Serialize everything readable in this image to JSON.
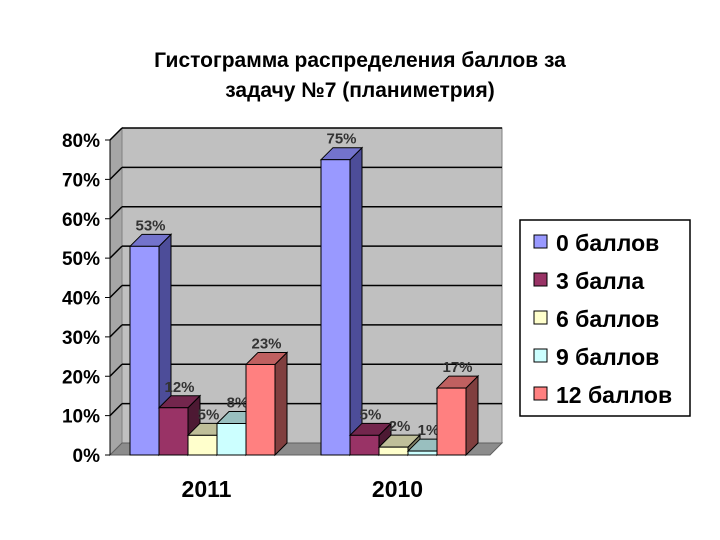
{
  "chart_data": {
    "type": "bar",
    "title_lines": [
      "Гистограмма распределения баллов за",
      "задачу №7 (планиметрия)"
    ],
    "categories": [
      "2011",
      "2010"
    ],
    "series": [
      {
        "name": "0 баллов",
        "values": [
          53,
          75
        ],
        "labels": [
          "53%",
          "75%"
        ],
        "color": "#9999ff",
        "side": "#4d4d99",
        "top": "#7373cc"
      },
      {
        "name": "3 балла",
        "values": [
          12,
          5
        ],
        "labels": [
          "12%",
          "5%"
        ],
        "color": "#993366",
        "side": "#4d1933",
        "top": "#73264d"
      },
      {
        "name": "6 баллов",
        "values": [
          5,
          2
        ],
        "labels": [
          "5%",
          "2%"
        ],
        "color": "#ffffcc",
        "side": "#808066",
        "top": "#bfbf99"
      },
      {
        "name": "9 баллов",
        "values": [
          8,
          1
        ],
        "labels": [
          "8%",
          "1%"
        ],
        "color": "#ccffff",
        "side": "#668080",
        "top": "#99bfbf"
      },
      {
        "name": "12 баллов",
        "values": [
          23,
          17
        ],
        "labels": [
          "23%",
          "17%"
        ],
        "color": "#ff8080",
        "side": "#803f3f",
        "top": "#bf6060"
      }
    ],
    "y_ticks": [
      "0%",
      "10%",
      "20%",
      "30%",
      "40%",
      "50%",
      "60%",
      "70%",
      "80%"
    ],
    "ylim": [
      0,
      80
    ],
    "grid": true,
    "legend_position": "right",
    "plot_background": "#c0c0c0"
  }
}
